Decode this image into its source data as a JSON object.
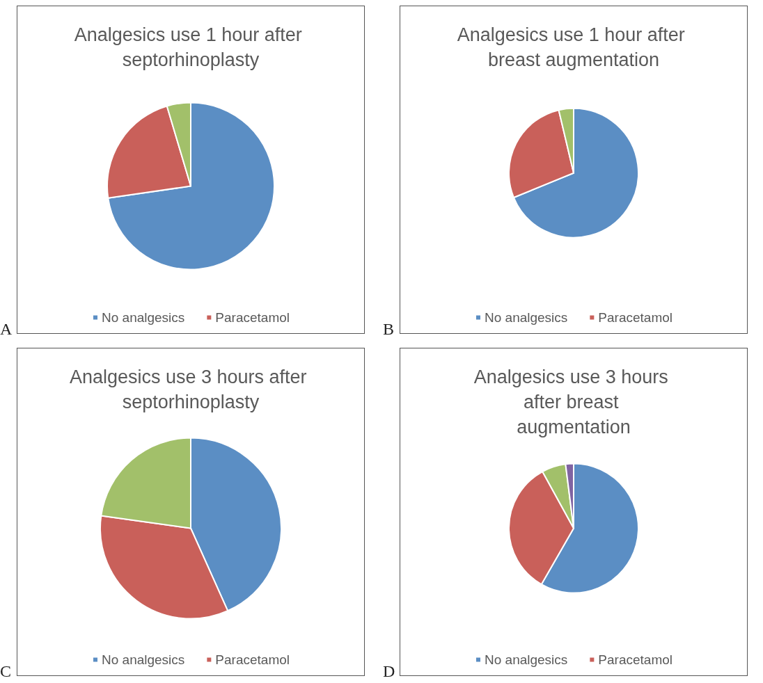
{
  "chart_data": [
    {
      "type": "pie",
      "title": "Analgesics use 1 hour after septorhinoplasty",
      "categories": [
        "No analgesics",
        "Paracetamol",
        null
      ],
      "values": [
        72.7,
        22.7,
        4.6
      ],
      "colors": [
        "#5b8ec4",
        "#c9605a",
        "#a2c06a"
      ],
      "legend": "bottom",
      "annotations": [
        "A"
      ]
    },
    {
      "type": "pie",
      "title": "Analgesics use 1 hour after breast augmentation",
      "categories": [
        "No analgesics",
        "Paracetamol",
        null
      ],
      "values": [
        68.8,
        27.5,
        3.7
      ],
      "colors": [
        "#5b8ec4",
        "#c9605a",
        "#a2c06a"
      ],
      "legend": "bottom",
      "annotations": [
        "B"
      ]
    },
    {
      "type": "pie",
      "title": "Analgesics use 3 hours after septorhinoplasty",
      "categories": [
        "No analgesics",
        "Paracetamol",
        null
      ],
      "values": [
        43.3,
        33.9,
        22.8
      ],
      "colors": [
        "#5b8ec4",
        "#c9605a",
        "#a2c06a"
      ],
      "legend": "bottom",
      "annotations": [
        "C"
      ]
    },
    {
      "type": "pie",
      "title": "Analgesics use 3 hours after breast augmentation",
      "categories": [
        "No analgesics",
        "Paracetamol",
        null,
        null
      ],
      "values": [
        58.3,
        33.7,
        6.0,
        2.0
      ],
      "colors": [
        "#5b8ec4",
        "#c9605a",
        "#a2c06a",
        "#8064a2"
      ],
      "legend": "bottom",
      "annotations": [
        "D"
      ]
    }
  ]
}
